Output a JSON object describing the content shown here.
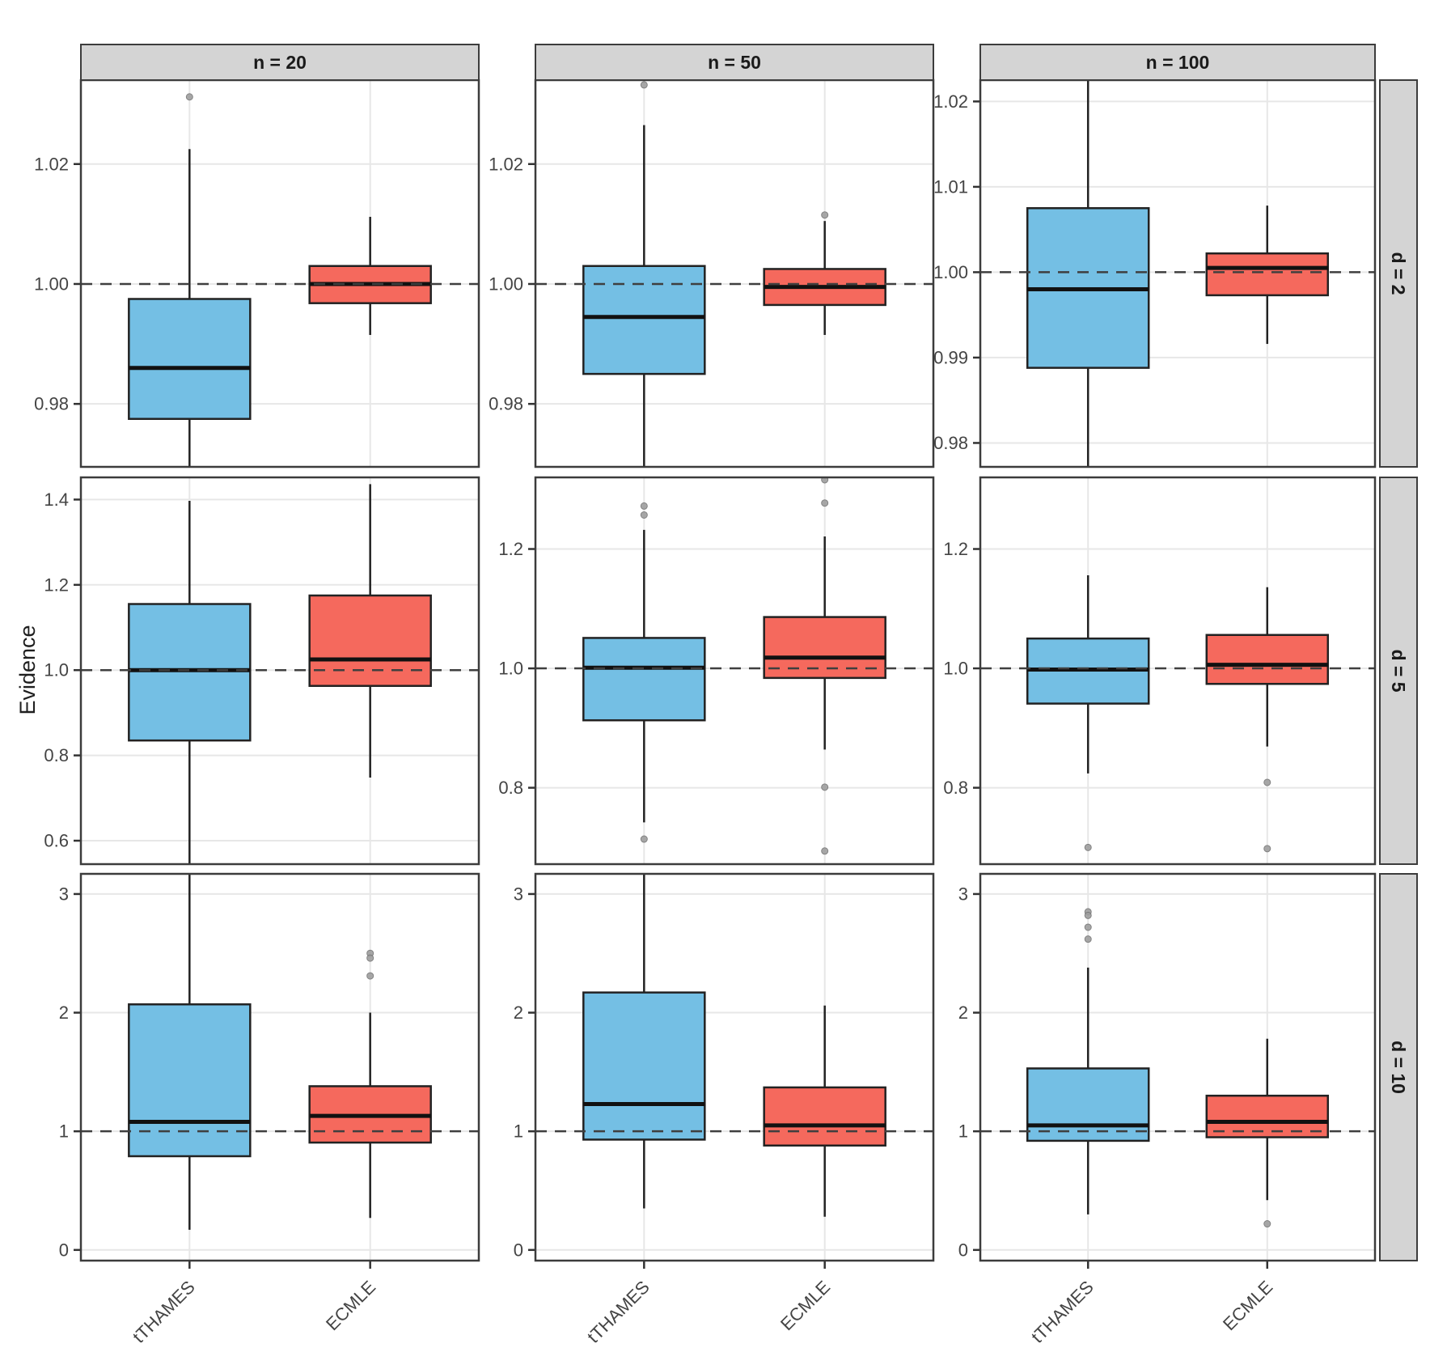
{
  "chart_data": {
    "type": "boxplot",
    "title": "",
    "ylabel": "Evidence",
    "categories": [
      "tTHAMES",
      "ECMLE"
    ],
    "legend": "none",
    "grid": "major-only",
    "reference_line": 1.0,
    "series_colors": {
      "tTHAMES": "#74BFE4",
      "ECMLE": "#F5695D"
    },
    "outlier_color": "#9E9E9E",
    "strip_fill": "#D4D4D4",
    "panel_border_color": "#3C3C3C",
    "col_facets": [
      "n = 20",
      "n = 50",
      "n = 100"
    ],
    "row_facets": [
      "d = 2",
      "d = 5",
      "d = 10"
    ],
    "panels": [
      {
        "row_facet": "d = 2",
        "col_facet": "n = 20",
        "ylim": [
          0.9695,
          1.034
        ],
        "yticks": [
          {
            "v": 1.02,
            "label": "1.02"
          },
          {
            "v": 1.0,
            "label": "1.00"
          },
          {
            "v": 0.98,
            "label": "0.98"
          }
        ],
        "boxes": [
          {
            "group": "tTHAMES",
            "lo": null,
            "lo_clip": true,
            "q1": 0.9775,
            "med": 0.986,
            "q3": 0.9975,
            "hi": 1.0225,
            "hi_clip": false,
            "outliers": [
              1.0312
            ]
          },
          {
            "group": "ECMLE",
            "lo": 0.9915,
            "lo_clip": false,
            "q1": 0.9968,
            "med": 1.0,
            "q3": 1.003,
            "hi": 1.0112,
            "hi_clip": false,
            "outliers": []
          }
        ]
      },
      {
        "row_facet": "d = 2",
        "col_facet": "n = 50",
        "ylim": [
          0.9695,
          1.034
        ],
        "yticks": [
          {
            "v": 1.02,
            "label": "1.02"
          },
          {
            "v": 1.0,
            "label": "1.00"
          },
          {
            "v": 0.98,
            "label": "0.98"
          }
        ],
        "boxes": [
          {
            "group": "tTHAMES",
            "lo": null,
            "lo_clip": true,
            "q1": 0.985,
            "med": 0.9945,
            "q3": 1.003,
            "hi": 1.0265,
            "hi_clip": false,
            "outliers": [
              1.0332
            ]
          },
          {
            "group": "ECMLE",
            "lo": 0.9915,
            "lo_clip": false,
            "q1": 0.9965,
            "med": 0.9995,
            "q3": 1.0025,
            "hi": 1.0105,
            "hi_clip": false,
            "outliers": [
              1.0115
            ]
          }
        ]
      },
      {
        "row_facet": "d = 2",
        "col_facet": "n = 100",
        "ylim": [
          0.9772,
          1.0225
        ],
        "yticks": [
          {
            "v": 1.02,
            "label": "1.02"
          },
          {
            "v": 1.01,
            "label": "1.01"
          },
          {
            "v": 1.0,
            "label": "1.00"
          },
          {
            "v": 0.99,
            "label": "0.99"
          },
          {
            "v": 0.98,
            "label": "0.98"
          }
        ],
        "boxes": [
          {
            "group": "tTHAMES",
            "lo": null,
            "lo_clip": true,
            "q1": 0.9888,
            "med": 0.998,
            "q3": 1.0075,
            "hi": null,
            "hi_clip": true,
            "outliers": []
          },
          {
            "group": "ECMLE",
            "lo": 0.9916,
            "lo_clip": false,
            "q1": 0.9973,
            "med": 1.0005,
            "q3": 1.0022,
            "hi": 1.0078,
            "hi_clip": false,
            "outliers": []
          }
        ]
      },
      {
        "row_facet": "d = 5",
        "col_facet": "n = 20",
        "ylim": [
          0.545,
          1.452
        ],
        "yticks": [
          {
            "v": 1.4,
            "label": "1.4"
          },
          {
            "v": 1.2,
            "label": "1.2"
          },
          {
            "v": 1.0,
            "label": "1.0"
          },
          {
            "v": 0.8,
            "label": "0.8"
          },
          {
            "v": 0.6,
            "label": "0.6"
          }
        ],
        "boxes": [
          {
            "group": "tTHAMES",
            "lo": null,
            "lo_clip": true,
            "q1": 0.835,
            "med": 1.0,
            "q3": 1.155,
            "hi": 1.397,
            "hi_clip": false,
            "outliers": []
          },
          {
            "group": "ECMLE",
            "lo": 0.748,
            "lo_clip": false,
            "q1": 0.963,
            "med": 1.025,
            "q3": 1.175,
            "hi": 1.436,
            "hi_clip": false,
            "outliers": []
          }
        ]
      },
      {
        "row_facet": "d = 5",
        "col_facet": "n = 50",
        "ylim": [
          0.672,
          1.32
        ],
        "yticks": [
          {
            "v": 1.2,
            "label": "1.2"
          },
          {
            "v": 1.0,
            "label": "1.0"
          },
          {
            "v": 0.8,
            "label": "0.8"
          }
        ],
        "boxes": [
          {
            "group": "tTHAMES",
            "lo": 0.742,
            "lo_clip": false,
            "q1": 0.913,
            "med": 1.001,
            "q3": 1.051,
            "hi": 1.232,
            "hi_clip": false,
            "outliers": [
              1.272,
              1.257,
              0.714
            ]
          },
          {
            "group": "ECMLE",
            "lo": 0.864,
            "lo_clip": false,
            "q1": 0.984,
            "med": 1.018,
            "q3": 1.086,
            "hi": 1.221,
            "hi_clip": false,
            "outliers": [
              1.316,
              1.277,
              0.801,
              0.694
            ]
          }
        ]
      },
      {
        "row_facet": "d = 5",
        "col_facet": "n = 100",
        "ylim": [
          0.672,
          1.32
        ],
        "yticks": [
          {
            "v": 1.2,
            "label": "1.2"
          },
          {
            "v": 1.0,
            "label": "1.0"
          },
          {
            "v": 0.8,
            "label": "0.8"
          }
        ],
        "boxes": [
          {
            "group": "tTHAMES",
            "lo": 0.824,
            "lo_clip": false,
            "q1": 0.941,
            "med": 0.998,
            "q3": 1.05,
            "hi": 1.156,
            "hi_clip": false,
            "outliers": [
              0.7
            ]
          },
          {
            "group": "ECMLE",
            "lo": 0.869,
            "lo_clip": false,
            "q1": 0.974,
            "med": 1.006,
            "q3": 1.056,
            "hi": 1.136,
            "hi_clip": false,
            "outliers": [
              0.809,
              0.698
            ]
          }
        ]
      },
      {
        "row_facet": "d = 10",
        "col_facet": "n = 20",
        "ylim": [
          -0.09,
          3.17
        ],
        "yticks": [
          {
            "v": 3,
            "label": "3"
          },
          {
            "v": 2,
            "label": "2"
          },
          {
            "v": 1,
            "label": "1"
          },
          {
            "v": 0,
            "label": "0"
          }
        ],
        "boxes": [
          {
            "group": "tTHAMES",
            "lo": 0.17,
            "lo_clip": false,
            "q1": 0.79,
            "med": 1.08,
            "q3": 2.07,
            "hi": null,
            "hi_clip": true,
            "outliers": []
          },
          {
            "group": "ECMLE",
            "lo": 0.27,
            "lo_clip": false,
            "q1": 0.905,
            "med": 1.13,
            "q3": 1.38,
            "hi": 2.0,
            "hi_clip": false,
            "outliers": [
              2.5,
              2.46,
              2.31
            ]
          }
        ]
      },
      {
        "row_facet": "d = 10",
        "col_facet": "n = 50",
        "ylim": [
          -0.09,
          3.17
        ],
        "yticks": [
          {
            "v": 3,
            "label": "3"
          },
          {
            "v": 2,
            "label": "2"
          },
          {
            "v": 1,
            "label": "1"
          },
          {
            "v": 0,
            "label": "0"
          }
        ],
        "boxes": [
          {
            "group": "tTHAMES",
            "lo": 0.35,
            "lo_clip": false,
            "q1": 0.93,
            "med": 1.23,
            "q3": 2.17,
            "hi": null,
            "hi_clip": true,
            "outliers": []
          },
          {
            "group": "ECMLE",
            "lo": 0.28,
            "lo_clip": false,
            "q1": 0.88,
            "med": 1.05,
            "q3": 1.37,
            "hi": 2.06,
            "hi_clip": false,
            "outliers": []
          }
        ]
      },
      {
        "row_facet": "d = 10",
        "col_facet": "n = 100",
        "ylim": [
          -0.09,
          3.17
        ],
        "yticks": [
          {
            "v": 3,
            "label": "3"
          },
          {
            "v": 2,
            "label": "2"
          },
          {
            "v": 1,
            "label": "1"
          },
          {
            "v": 0,
            "label": "0"
          }
        ],
        "boxes": [
          {
            "group": "tTHAMES",
            "lo": 0.3,
            "lo_clip": false,
            "q1": 0.92,
            "med": 1.05,
            "q3": 1.53,
            "hi": 2.38,
            "hi_clip": false,
            "outliers": [
              2.85,
              2.82,
              2.72,
              2.62
            ]
          },
          {
            "group": "ECMLE",
            "lo": 0.42,
            "lo_clip": false,
            "q1": 0.95,
            "med": 1.08,
            "q3": 1.3,
            "hi": 1.78,
            "hi_clip": false,
            "outliers": [
              0.22
            ]
          }
        ]
      }
    ]
  }
}
